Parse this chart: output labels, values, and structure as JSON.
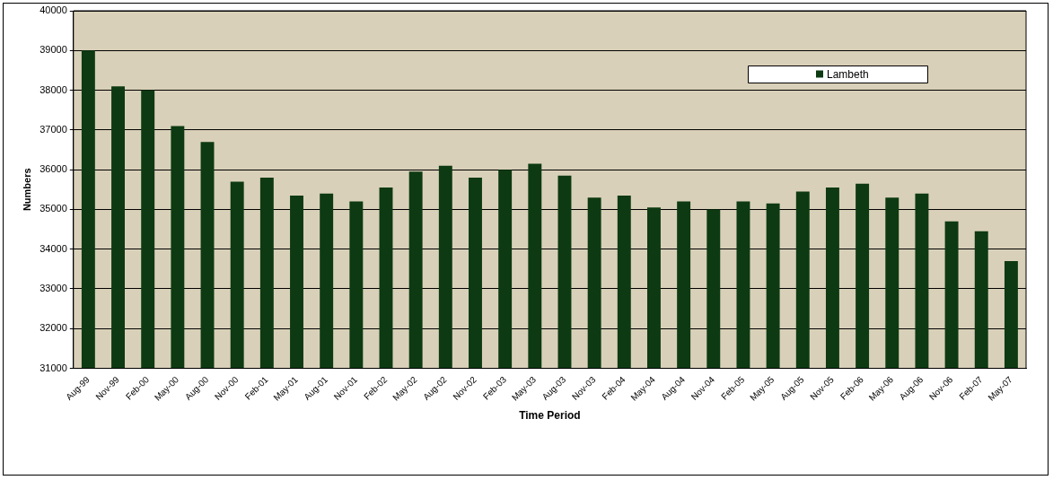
{
  "chart_data": {
    "type": "bar",
    "xlabel": "Time Period",
    "ylabel": "Numbers",
    "categories": [
      "Aug-99",
      "Nov-99",
      "Feb-00",
      "May-00",
      "Aug-00",
      "Nov-00",
      "Feb-01",
      "May-01",
      "Aug-01",
      "Nov-01",
      "Feb-02",
      "May-02",
      "Aug-02",
      "Nov-02",
      "Feb-03",
      "May-03",
      "Aug-03",
      "Nov-03",
      "Feb-04",
      "May-04",
      "Aug-04",
      "Nov-04",
      "Feb-05",
      "May-05",
      "Aug-05",
      "Nov-05",
      "Feb-06",
      "May-06",
      "Aug-06",
      "Nov-06",
      "Feb-07",
      "May-07"
    ],
    "series": [
      {
        "name": "Lambeth",
        "color": "#0d3a12",
        "values": [
          39000,
          38100,
          38000,
          37100,
          36700,
          35700,
          35800,
          35350,
          35400,
          35200,
          35550,
          35950,
          36100,
          35800,
          36000,
          36150,
          35850,
          35300,
          35350,
          35050,
          35200,
          35000,
          35200,
          35150,
          35450,
          35550,
          35650,
          35300,
          35400,
          34700,
          34450,
          33700
        ]
      }
    ],
    "ylim": [
      31000,
      40000
    ],
    "yticks": [
      31000,
      32000,
      33000,
      34000,
      35000,
      36000,
      37000,
      38000,
      39000,
      40000
    ],
    "grid": "y",
    "legend": "top right"
  }
}
